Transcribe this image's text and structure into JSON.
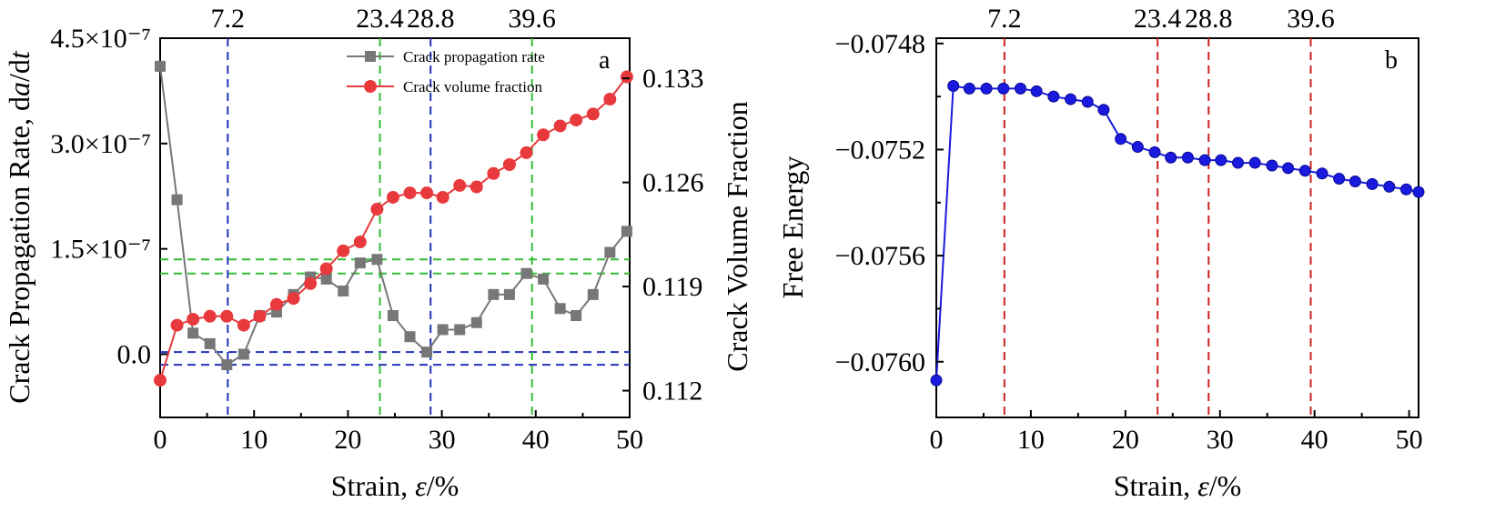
{
  "chart_data": [
    {
      "id": "a",
      "panel_label": "a",
      "type": "line",
      "x": [
        0,
        1.8,
        3.5,
        5.3,
        7.1,
        8.9,
        10.6,
        12.4,
        14.2,
        16.0,
        17.7,
        19.5,
        21.3,
        23.1,
        24.8,
        26.6,
        28.4,
        30.1,
        31.9,
        33.7,
        35.5,
        37.2,
        39.0,
        40.8,
        42.6,
        44.3,
        46.1,
        47.9,
        49.7
      ],
      "series": [
        {
          "name": "Crack propagation rate",
          "axis": "left",
          "color": "#777777",
          "marker": "square",
          "values": [
            4.1e-07,
            2.2e-07,
            3e-08,
            1.5e-08,
            -1.5e-08,
            0.0,
            5.5e-08,
            6e-08,
            8.5e-08,
            1.1e-07,
            1.07e-07,
            9e-08,
            1.3e-07,
            1.35e-07,
            5.5e-08,
            2.5e-08,
            3e-09,
            3.5e-08,
            3.5e-08,
            4.5e-08,
            8.5e-08,
            8.5e-08,
            1.15e-07,
            1.07e-07,
            6.5e-08,
            5.5e-08,
            8.5e-08,
            1.45e-07,
            1.75e-07
          ]
        },
        {
          "name": "Crack volume fraction",
          "axis": "right",
          "color": "#e8393d",
          "marker": "circle",
          "values": [
            0.1127,
            0.1164,
            0.1168,
            0.117,
            0.117,
            0.1164,
            0.117,
            0.1178,
            0.1182,
            0.1192,
            0.1202,
            0.1214,
            0.122,
            0.1242,
            0.125,
            0.1253,
            0.1253,
            0.125,
            0.1258,
            0.1257,
            0.1266,
            0.1272,
            0.128,
            0.1292,
            0.1298,
            0.1302,
            0.1306,
            0.1316,
            0.1331
          ]
        }
      ],
      "xlabel_prefix": "Strain, ",
      "xlabel_var": "ε",
      "xlabel_suffix": "/%",
      "ylabel_left_prefix": "Crack Propagation Rate, d",
      "ylabel_left_var1": "a",
      "ylabel_left_mid": "/d",
      "ylabel_left_var2": "t",
      "ylabel_right": "Crack Volume Fraction",
      "xlim": [
        0,
        50
      ],
      "ylim_left": [
        -9e-08,
        4.5e-07
      ],
      "ylim_right": [
        0.1102,
        0.1357
      ],
      "x_ticks": [
        0,
        10,
        20,
        30,
        40,
        50
      ],
      "x_tick_labels": [
        "0",
        "10",
        "20",
        "30",
        "40",
        "50"
      ],
      "y_left_ticks": [
        0,
        1.5e-07,
        3e-07,
        4.5e-07
      ],
      "y_left_tick_labels": [
        "0.0",
        "1.5×10⁻⁷",
        "3.0×10⁻⁷",
        "4.5×10⁻⁷"
      ],
      "y_right_ticks": [
        0.112,
        0.119,
        0.126,
        0.133
      ],
      "y_right_tick_labels": [
        "0.112",
        "0.119",
        "0.126",
        "0.133"
      ],
      "vlines": [
        {
          "x": 7.2,
          "label": "7.2",
          "color": "#2233bb"
        },
        {
          "x": 23.4,
          "label": "23.4",
          "color": "#33bb33"
        },
        {
          "x": 28.8,
          "label": "28.8",
          "color": "#2233bb"
        },
        {
          "x": 39.6,
          "label": "39.6",
          "color": "#33bb33"
        }
      ],
      "hlines": [
        {
          "y": 1.35e-07,
          "color": "#33bb33"
        },
        {
          "y": 1.15e-07,
          "color": "#33bb33"
        },
        {
          "y": 3e-09,
          "color": "#2233bb"
        },
        {
          "y": -1.5e-08,
          "color": "#2233bb"
        }
      ],
      "legend_position": "top-center"
    },
    {
      "id": "b",
      "panel_label": "b",
      "type": "line",
      "x": [
        0,
        1.8,
        3.5,
        5.3,
        7.1,
        8.9,
        10.6,
        12.4,
        14.2,
        16.0,
        17.7,
        19.5,
        21.3,
        23.1,
        24.8,
        26.6,
        28.4,
        30.1,
        31.9,
        33.7,
        35.5,
        37.2,
        39.0,
        40.8,
        42.6,
        44.3,
        46.1,
        47.9,
        49.7,
        51.0
      ],
      "series": [
        {
          "name": "Free Energy",
          "color": "#1a1adf",
          "marker": "circle",
          "values": [
            -0.07607,
            -0.07496,
            -0.07497,
            -0.07497,
            -0.07497,
            -0.07497,
            -0.07498,
            -0.075,
            -0.07501,
            -0.07502,
            -0.07505,
            -0.07516,
            -0.07519,
            -0.07521,
            -0.07523,
            -0.07523,
            -0.07524,
            -0.07524,
            -0.07525,
            -0.07525,
            -0.07526,
            -0.07527,
            -0.07528,
            -0.07529,
            -0.07531,
            -0.07532,
            -0.07533,
            -0.07534,
            -0.07535,
            -0.07536
          ]
        }
      ],
      "xlabel_prefix": "Strain, ",
      "xlabel_var": "ε",
      "xlabel_suffix": "/%",
      "ylabel": "Free Energy",
      "xlim": [
        0,
        51
      ],
      "ylim": [
        -0.07621,
        -0.07478
      ],
      "x_ticks": [
        0,
        10,
        20,
        30,
        40,
        50
      ],
      "x_tick_labels": [
        "0",
        "10",
        "20",
        "30",
        "40",
        "50"
      ],
      "y_ticks": [
        -0.076,
        -0.0756,
        -0.0752,
        -0.0748
      ],
      "y_tick_labels": [
        "−0.0760",
        "−0.0756",
        "−0.0752",
        "−0.0748"
      ],
      "vlines": [
        {
          "x": 7.2,
          "label": "7.2",
          "color": "#cc2222"
        },
        {
          "x": 23.4,
          "label": "23.4",
          "color": "#cc2222"
        },
        {
          "x": 28.8,
          "label": "28.8",
          "color": "#cc2222"
        },
        {
          "x": 39.6,
          "label": "39.6",
          "color": "#cc2222"
        }
      ]
    }
  ]
}
